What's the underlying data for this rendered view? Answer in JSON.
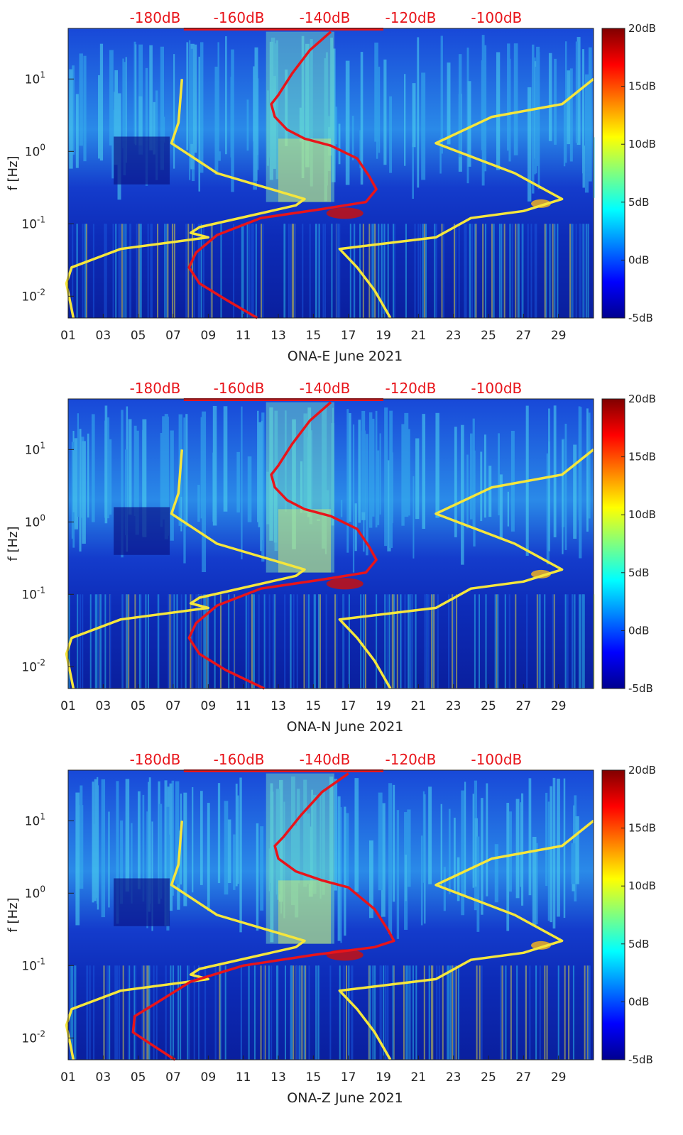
{
  "chart_data": [
    {
      "type": "heatmap",
      "station": "ONA-E",
      "xlabel": "ONA-E June 2021",
      "ylabel": "f [Hz]",
      "yscale": "log",
      "ylim": [
        0.005,
        50
      ],
      "xlim": [
        1,
        31
      ],
      "x_ticks": [
        "01",
        "03",
        "05",
        "07",
        "09",
        "11",
        "13",
        "15",
        "17",
        "19",
        "21",
        "23",
        "25",
        "27",
        "29"
      ],
      "y_ticks": [
        "10-2",
        "100",
        "101",
        "10-1"
      ],
      "top_axis_ticks": [
        "-180dB",
        "-160dB",
        "-140dB",
        "-120dB",
        "-100dB"
      ],
      "colorbar": {
        "ticks": [
          "20dB",
          "15dB",
          "10dB",
          "5dB",
          "0dB",
          "-5dB"
        ],
        "range": [
          -5,
          20
        ]
      },
      "overlay_series": [
        {
          "name": "yellow reference curve (left)",
          "color": "#f5e63c",
          "points": [
            [
              7.5,
              10
            ],
            [
              7.3,
              2.5
            ],
            [
              6.9,
              1.3
            ],
            [
              9.5,
              0.5
            ],
            [
              14.5,
              0.22
            ],
            [
              14.0,
              0.18
            ],
            [
              8.5,
              0.09
            ],
            [
              8.0,
              0.075
            ],
            [
              9.0,
              0.065
            ],
            [
              4.0,
              0.045
            ],
            [
              1.2,
              0.025
            ],
            [
              0.9,
              0.015
            ],
            [
              1.3,
              0.005
            ]
          ]
        },
        {
          "name": "red noise curve",
          "color": "#e8141a",
          "points": [
            [
              16.0,
              45
            ],
            [
              14.8,
              25
            ],
            [
              13.8,
              12
            ],
            [
              13.0,
              6
            ],
            [
              12.6,
              4.5
            ],
            [
              12.8,
              3
            ],
            [
              13.5,
              2
            ],
            [
              14.5,
              1.5
            ],
            [
              16.0,
              1.2
            ],
            [
              17.5,
              0.8
            ],
            [
              18.2,
              0.45
            ],
            [
              18.6,
              0.3
            ],
            [
              18.0,
              0.2
            ],
            [
              15.5,
              0.16
            ],
            [
              12.0,
              0.12
            ],
            [
              9.5,
              0.07
            ],
            [
              8.3,
              0.04
            ],
            [
              7.9,
              0.025
            ],
            [
              8.5,
              0.015
            ],
            [
              10.0,
              0.009
            ],
            [
              11.8,
              0.005
            ]
          ]
        },
        {
          "name": "yellow reference curve (right)",
          "color": "#f5e63c",
          "points": [
            [
              31.0,
              10
            ],
            [
              29.2,
              4.5
            ],
            [
              25.2,
              3
            ],
            [
              22.0,
              1.3
            ],
            [
              26.5,
              0.5
            ],
            [
              29.2,
              0.22
            ],
            [
              27.0,
              0.15
            ],
            [
              24.0,
              0.12
            ],
            [
              22.0,
              0.065
            ],
            [
              16.5,
              0.045
            ],
            [
              17.5,
              0.025
            ],
            [
              18.5,
              0.012
            ],
            [
              19.4,
              0.005
            ]
          ]
        }
      ]
    },
    {
      "type": "heatmap",
      "station": "ONA-N",
      "xlabel": "ONA-N June 2021",
      "ylabel": "f [Hz]",
      "yscale": "log",
      "ylim": [
        0.005,
        50
      ],
      "xlim": [
        1,
        31
      ],
      "x_ticks": [
        "01",
        "03",
        "05",
        "07",
        "09",
        "11",
        "13",
        "15",
        "17",
        "19",
        "21",
        "23",
        "25",
        "27",
        "29"
      ],
      "y_ticks": [
        "10-2",
        "100",
        "101",
        "10-1"
      ],
      "top_axis_ticks": [
        "-180dB",
        "-160dB",
        "-140dB",
        "-120dB",
        "-100dB"
      ],
      "colorbar": {
        "ticks": [
          "20dB",
          "15dB",
          "10dB",
          "5dB",
          "0dB",
          "-5dB"
        ],
        "range": [
          -5,
          20
        ]
      },
      "overlay_series": [
        {
          "name": "yellow reference curve (left)",
          "color": "#f5e63c",
          "points": [
            [
              7.5,
              10
            ],
            [
              7.3,
              2.5
            ],
            [
              6.9,
              1.3
            ],
            [
              9.5,
              0.5
            ],
            [
              14.5,
              0.22
            ],
            [
              14.0,
              0.18
            ],
            [
              8.5,
              0.09
            ],
            [
              8.0,
              0.075
            ],
            [
              9.0,
              0.065
            ],
            [
              4.0,
              0.045
            ],
            [
              1.2,
              0.025
            ],
            [
              0.9,
              0.015
            ],
            [
              1.3,
              0.005
            ]
          ]
        },
        {
          "name": "red noise curve",
          "color": "#e8141a",
          "points": [
            [
              16.0,
              45
            ],
            [
              14.8,
              25
            ],
            [
              13.8,
              12
            ],
            [
              13.0,
              6
            ],
            [
              12.6,
              4.5
            ],
            [
              12.8,
              3
            ],
            [
              13.5,
              2
            ],
            [
              14.5,
              1.5
            ],
            [
              16.0,
              1.2
            ],
            [
              17.5,
              0.8
            ],
            [
              18.2,
              0.45
            ],
            [
              18.6,
              0.3
            ],
            [
              18.0,
              0.2
            ],
            [
              15.5,
              0.16
            ],
            [
              12.0,
              0.12
            ],
            [
              9.5,
              0.07
            ],
            [
              8.3,
              0.04
            ],
            [
              7.9,
              0.025
            ],
            [
              8.5,
              0.015
            ],
            [
              10.0,
              0.009
            ],
            [
              12.2,
              0.005
            ]
          ]
        },
        {
          "name": "yellow reference curve (right)",
          "color": "#f5e63c",
          "points": [
            [
              31.0,
              10
            ],
            [
              29.2,
              4.5
            ],
            [
              25.2,
              3
            ],
            [
              22.0,
              1.3
            ],
            [
              26.5,
              0.5
            ],
            [
              29.2,
              0.22
            ],
            [
              27.0,
              0.15
            ],
            [
              24.0,
              0.12
            ],
            [
              22.0,
              0.065
            ],
            [
              16.5,
              0.045
            ],
            [
              17.5,
              0.025
            ],
            [
              18.5,
              0.012
            ],
            [
              19.4,
              0.005
            ]
          ]
        }
      ]
    },
    {
      "type": "heatmap",
      "station": "ONA-Z",
      "xlabel": "ONA-Z June 2021",
      "ylabel": "f [Hz]",
      "yscale": "log",
      "ylim": [
        0.005,
        50
      ],
      "xlim": [
        1,
        31
      ],
      "x_ticks": [
        "01",
        "03",
        "05",
        "07",
        "09",
        "11",
        "13",
        "15",
        "17",
        "19",
        "21",
        "23",
        "25",
        "27",
        "29"
      ],
      "y_ticks": [
        "10-2",
        "100",
        "101",
        "10-1"
      ],
      "top_axis_ticks": [
        "-180dB",
        "-160dB",
        "-140dB",
        "-120dB",
        "-100dB"
      ],
      "colorbar": {
        "ticks": [
          "20dB",
          "15dB",
          "10dB",
          "5dB",
          "0dB",
          "-5dB"
        ],
        "range": [
          -5,
          20
        ]
      },
      "overlay_series": [
        {
          "name": "yellow reference curve (left)",
          "color": "#f5e63c",
          "points": [
            [
              7.5,
              10
            ],
            [
              7.3,
              2.5
            ],
            [
              6.9,
              1.3
            ],
            [
              9.5,
              0.5
            ],
            [
              14.5,
              0.22
            ],
            [
              14.0,
              0.18
            ],
            [
              8.5,
              0.09
            ],
            [
              8.0,
              0.075
            ],
            [
              9.0,
              0.065
            ],
            [
              4.0,
              0.045
            ],
            [
              1.2,
              0.025
            ],
            [
              0.9,
              0.015
            ],
            [
              1.3,
              0.005
            ]
          ]
        },
        {
          "name": "red noise curve",
          "color": "#e8141a",
          "points": [
            [
              17.0,
              45
            ],
            [
              15.5,
              25
            ],
            [
              14.3,
              12
            ],
            [
              13.3,
              6
            ],
            [
              12.8,
              4.5
            ],
            [
              13.0,
              3
            ],
            [
              14.0,
              2
            ],
            [
              15.5,
              1.5
            ],
            [
              17.0,
              1.2
            ],
            [
              18.5,
              0.6
            ],
            [
              19.3,
              0.3
            ],
            [
              19.6,
              0.22
            ],
            [
              18.5,
              0.18
            ],
            [
              15.0,
              0.14
            ],
            [
              11.0,
              0.1
            ],
            [
              8.0,
              0.06
            ],
            [
              6.0,
              0.03
            ],
            [
              4.8,
              0.02
            ],
            [
              4.7,
              0.012
            ],
            [
              5.8,
              0.008
            ],
            [
              7.1,
              0.005
            ]
          ]
        },
        {
          "name": "yellow reference curve (right)",
          "color": "#f5e63c",
          "points": [
            [
              31.0,
              10
            ],
            [
              29.2,
              4.5
            ],
            [
              25.2,
              3
            ],
            [
              22.0,
              1.3
            ],
            [
              26.5,
              0.5
            ],
            [
              29.2,
              0.22
            ],
            [
              27.0,
              0.15
            ],
            [
              24.0,
              0.12
            ],
            [
              22.0,
              0.065
            ],
            [
              16.5,
              0.045
            ],
            [
              17.5,
              0.025
            ],
            [
              18.5,
              0.012
            ],
            [
              19.4,
              0.005
            ]
          ]
        }
      ]
    }
  ]
}
